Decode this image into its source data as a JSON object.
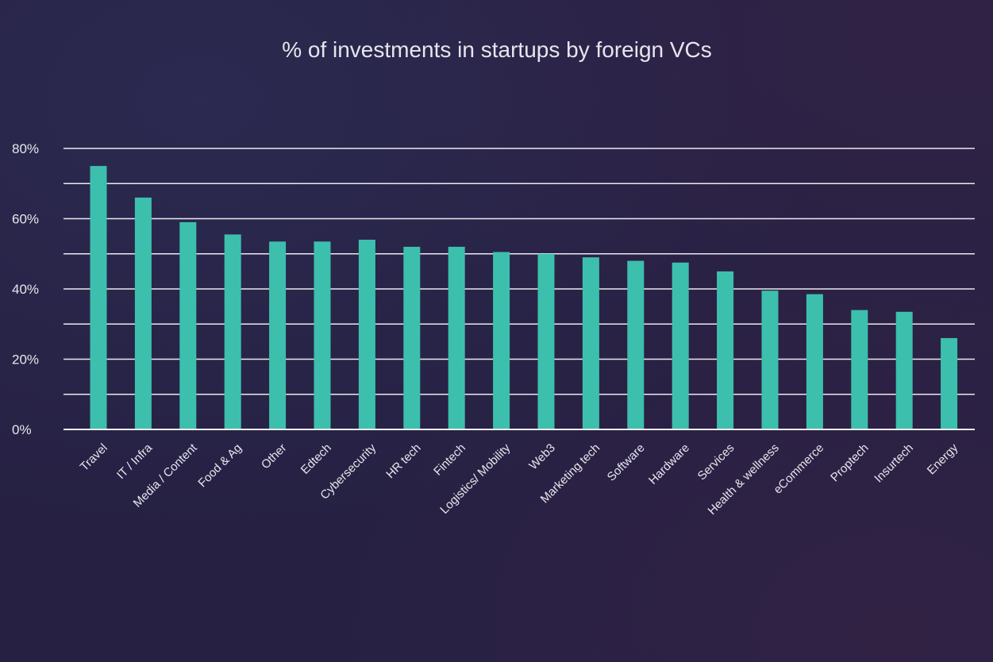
{
  "chart_data": {
    "type": "bar",
    "title": "% of investments in startups by foreign VCs",
    "xlabel": "",
    "ylabel": "",
    "ylim": [
      0,
      80
    ],
    "y_ticks": [
      "0%",
      "20%",
      "40%",
      "60%",
      "80%"
    ],
    "y_tick_values": [
      0,
      20,
      40,
      60,
      80
    ],
    "gridlines_every": 10,
    "grid": true,
    "legend": "none",
    "bar_color": "#3dbfad",
    "categories": [
      "Travel",
      "IT / Infra",
      "Media / Content",
      "Food & Ag",
      "Other",
      "Edtech",
      "Cybersecurity",
      "HR tech",
      "Fintech",
      "Logistics/ Mobility",
      "Web3",
      "Marketing tech",
      "Software",
      "Hardware",
      "Services",
      "Health & wellness",
      "eCommerce",
      "Proptech",
      "Insurtech",
      "Energy"
    ],
    "values": [
      75,
      66,
      59,
      55.5,
      53.5,
      53.5,
      54,
      52,
      52,
      50.5,
      50,
      49,
      48,
      47.5,
      45,
      39.5,
      38.5,
      34,
      33.5,
      26
    ]
  }
}
